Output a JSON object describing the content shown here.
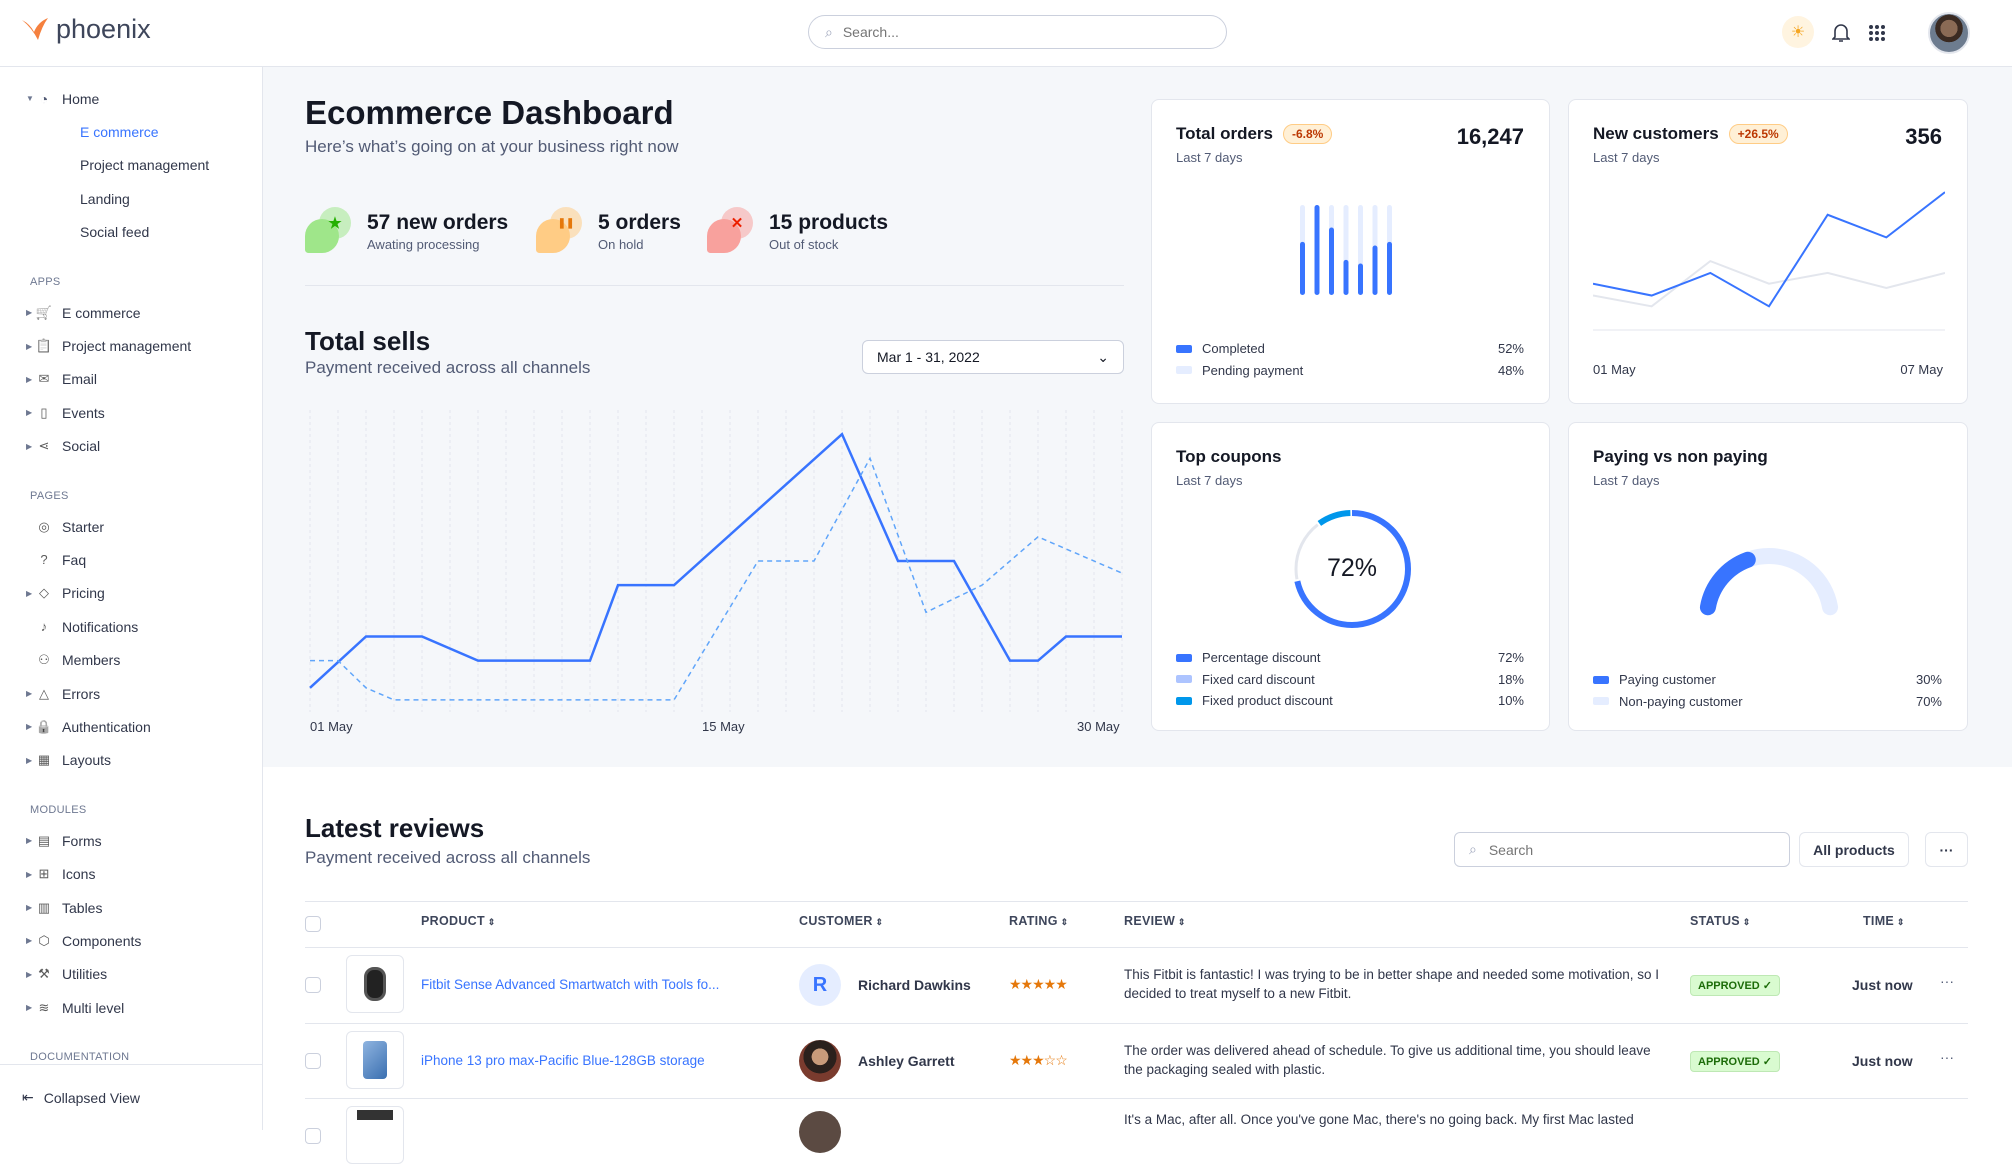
{
  "app": {
    "name": "phoenix"
  },
  "topbar": {
    "search_placeholder": "Search...",
    "icons": [
      "sun-icon",
      "bell-icon",
      "apps-grid-icon"
    ]
  },
  "sidebar": {
    "home": {
      "label": "Home",
      "children": [
        {
          "label": "E commerce",
          "active": true
        },
        {
          "label": "Project management"
        },
        {
          "label": "Landing"
        },
        {
          "label": "Social feed"
        }
      ]
    },
    "sections": [
      {
        "title": "APPS",
        "items": [
          {
            "label": "E commerce",
            "icon": "cart-icon",
            "caret": true
          },
          {
            "label": "Project management",
            "icon": "clipboard-icon",
            "caret": true
          },
          {
            "label": "Email",
            "icon": "mail-icon",
            "caret": true
          },
          {
            "label": "Events",
            "icon": "bookmark-icon",
            "caret": true
          },
          {
            "label": "Social",
            "icon": "share-icon",
            "caret": true
          }
        ]
      },
      {
        "title": "PAGES",
        "items": [
          {
            "label": "Starter",
            "icon": "compass-icon"
          },
          {
            "label": "Faq",
            "icon": "help-icon"
          },
          {
            "label": "Pricing",
            "icon": "tag-icon",
            "caret": true
          },
          {
            "label": "Notifications",
            "icon": "bell-icon"
          },
          {
            "label": "Members",
            "icon": "users-icon"
          },
          {
            "label": "Errors",
            "icon": "alert-icon",
            "caret": true
          },
          {
            "label": "Authentication",
            "icon": "lock-icon",
            "caret": true
          },
          {
            "label": "Layouts",
            "icon": "layout-icon",
            "caret": true
          }
        ]
      },
      {
        "title": "MODULES",
        "items": [
          {
            "label": "Forms",
            "icon": "file-icon",
            "caret": true
          },
          {
            "label": "Icons",
            "icon": "grid-icon",
            "caret": true
          },
          {
            "label": "Tables",
            "icon": "columns-icon",
            "caret": true
          },
          {
            "label": "Components",
            "icon": "package-icon",
            "caret": true
          },
          {
            "label": "Utilities",
            "icon": "tool-icon",
            "caret": true
          },
          {
            "label": "Multi level",
            "icon": "layers-icon",
            "caret": true
          }
        ]
      },
      {
        "title": "DOCUMENTATION",
        "items": []
      }
    ],
    "collapse_label": "Collapsed View"
  },
  "header": {
    "title": "Ecommerce Dashboard",
    "subtitle": "Here’s what’s going on at your business right now"
  },
  "stats": [
    {
      "title": "57 new orders",
      "subtitle": "Awating processing",
      "icon": "star-icon",
      "color": "#25b003",
      "bg": "#9fe68a"
    },
    {
      "title": "5 orders",
      "subtitle": "On hold",
      "icon": "pause-icon",
      "color": "#e5780b",
      "bg": "#ffcc85"
    },
    {
      "title": "15 products",
      "subtitle": "Out of stock",
      "icon": "x-icon",
      "color": "#ec1f00",
      "bg": "#f8a19d"
    }
  ],
  "total_sells": {
    "title": "Total sells",
    "subtitle": "Payment received across all channels",
    "date_range": "Mar 1 - 31, 2022"
  },
  "chart_data": [
    {
      "type": "line",
      "x_tick_labels": [
        "01 May",
        "15 May",
        "30 May"
      ],
      "xlim": [
        1,
        30
      ],
      "ylim": [
        0,
        100
      ],
      "grid": "vertical dashed",
      "series": [
        {
          "style": "solid",
          "color": "#3874ff",
          "x": [
            1,
            3,
            5,
            7,
            11,
            12,
            14,
            20,
            22,
            24,
            26,
            27,
            28,
            30
          ],
          "y": [
            8,
            25,
            25,
            17,
            17,
            42,
            42,
            92,
            50,
            50,
            17,
            17,
            25,
            25
          ]
        },
        {
          "style": "dashed",
          "color": "#60a5fa",
          "x": [
            1,
            2,
            3,
            4,
            14,
            17,
            19,
            21,
            23,
            25,
            27,
            30
          ],
          "y": [
            17,
            17,
            8,
            4,
            4,
            50,
            50,
            84,
            33,
            42,
            58,
            46
          ]
        }
      ]
    },
    {
      "type": "bar",
      "title": "Total orders",
      "values_completed": [
        0.59,
        1,
        0.75,
        0.39,
        0.35,
        0.55,
        0.59
      ],
      "ylim": [
        0,
        1
      ]
    },
    {
      "type": "line",
      "title": "New customers",
      "x_tick_labels": [
        "01 May",
        "07 May"
      ],
      "series": [
        {
          "color": "#3874ff",
          "values": [
            43,
            32,
            53,
            22,
            107,
            86,
            128
          ]
        },
        {
          "color": "#e3e6ed",
          "values": [
            32,
            22,
            64,
            43,
            53,
            39,
            53
          ]
        }
      ],
      "ylim": [
        0,
        130
      ]
    },
    {
      "type": "pie",
      "title": "Top coupons",
      "center_label": "72%",
      "values": [
        72,
        18,
        10
      ],
      "colors": [
        "#3874ff",
        "#e3e6ed",
        "#0097eb"
      ]
    },
    {
      "type": "pie",
      "title": "Paying vs non paying",
      "values": [
        30,
        70
      ],
      "colors": [
        "#3874ff",
        "#e5edff"
      ]
    }
  ],
  "cards": {
    "orders": {
      "title": "Total orders",
      "badge": "-6.8%",
      "value": "16,247",
      "subtitle": "Last 7 days",
      "legend": [
        {
          "label": "Completed",
          "value": "52%",
          "color": "#3874ff"
        },
        {
          "label": "Pending payment",
          "value": "48%",
          "color": "#e5edff"
        }
      ]
    },
    "customers": {
      "title": "New customers",
      "badge": "+26.5%",
      "value": "356",
      "subtitle": "Last 7 days",
      "x_start": "01 May",
      "x_end": "07 May"
    },
    "coupons": {
      "title": "Top coupons",
      "subtitle": "Last 7 days",
      "center": "72%",
      "legend": [
        {
          "label": "Percentage discount",
          "value": "72%",
          "color": "#3874ff"
        },
        {
          "label": "Fixed card discount",
          "value": "18%",
          "color": "#adc4ff"
        },
        {
          "label": "Fixed product discount",
          "value": "10%",
          "color": "#0097eb"
        }
      ]
    },
    "paying": {
      "title": "Paying vs non paying",
      "subtitle": "Last 7 days",
      "legend": [
        {
          "label": "Paying customer",
          "value": "30%",
          "color": "#3874ff"
        },
        {
          "label": "Non-paying customer",
          "value": "70%",
          "color": "#e5edff"
        }
      ]
    }
  },
  "reviews": {
    "title": "Latest reviews",
    "subtitle": "Payment received across all channels",
    "search_placeholder": "Search",
    "filter_label": "All products",
    "more_label": "···",
    "columns": [
      "PRODUCT",
      "CUSTOMER",
      "RATING",
      "REVIEW",
      "STATUS",
      "TIME"
    ],
    "rows": [
      {
        "product": "Fitbit Sense Advanced Smartwatch with Tools fo...",
        "customer": "Richard Dawkins",
        "initial": "R",
        "rating": 5,
        "stars": "★★★★★",
        "review": "This Fitbit is fantastic! I was trying to be in better shape and needed some motivation, so I decided to treat myself to a new Fitbit.",
        "status": "APPROVED ✓",
        "time": "Just now"
      },
      {
        "product": "iPhone 13 pro max-Pacific Blue-128GB storage",
        "customer": "Ashley Garrett",
        "initial": "",
        "rating": 3,
        "stars": "★★★☆☆",
        "review": "The order was delivered ahead of schedule. To give us additional time, you should leave the packaging sealed with plastic.",
        "status": "APPROVED ✓",
        "time": "Just now"
      },
      {
        "product": "",
        "customer": "",
        "review": "It's a Mac, after all. Once you've gone Mac, there's no going back. My first Mac lasted"
      }
    ]
  }
}
